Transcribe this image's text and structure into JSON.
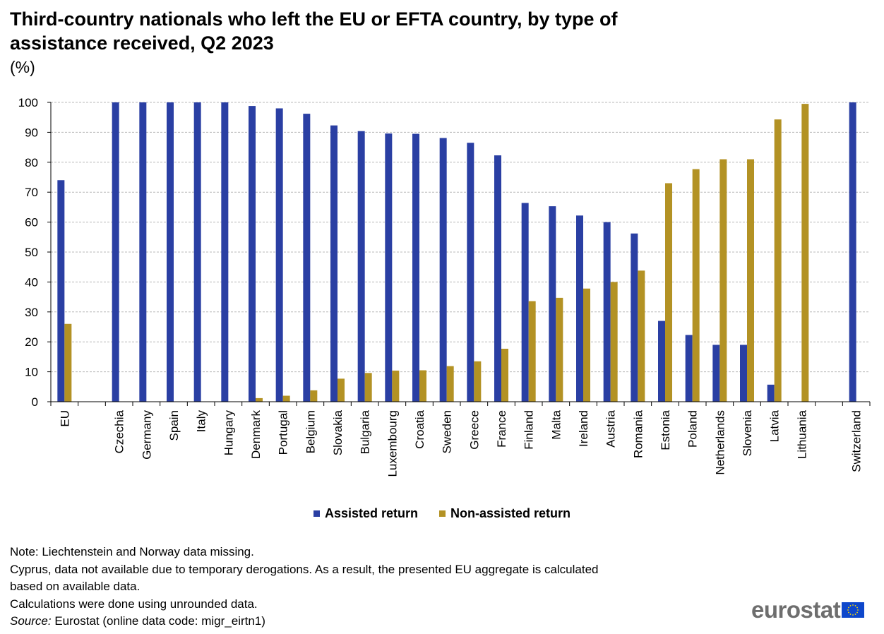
{
  "title": "Third-country nationals who left the EU or EFTA country, by type of assistance received, Q2 2023",
  "unit_label": "(%)",
  "colors": {
    "assisted": "#2a3fa3",
    "non_assisted": "#b39224",
    "grid": "#b8b8b8",
    "logo_text": "#6e6e6e",
    "flag": "#0e47cb",
    "flag_stars": "#ffdd00"
  },
  "legend": [
    {
      "label": "Assisted return",
      "color": "#2a3fa3"
    },
    {
      "label": "Non-assisted return",
      "color": "#b39224"
    }
  ],
  "notes": {
    "line1": "Note: Liechtenstein  and Norway data missing.",
    "line2": "Cyprus, data not available  due to temporary derogations. As a result, the presented EU aggregate is calculated",
    "line3": "based on available data.",
    "line4": "Calculations  were done using  unrounded  data.",
    "source_label": "Source:",
    "source_text": " Eurostat (online data code: migr_eirtn1)"
  },
  "logo": {
    "text": "eurostat",
    "icon": "eu-flag-icon"
  },
  "chart_data": {
    "type": "bar",
    "categories": [
      "EU",
      "",
      "Czechia",
      "Germany",
      "Spain",
      "Italy",
      "Hungary",
      "Denmark",
      "Portugal",
      "Belgium",
      "Slovakia",
      "Bulgaria",
      "Luxembourg",
      "Croatia",
      "Sweden",
      "Greece",
      "France",
      "Finland",
      "Malta",
      "Ireland",
      "Austria",
      "Romania",
      "Estonia",
      "Poland",
      "Netherlands",
      "Slovenia",
      "Latvia",
      "Lithuania",
      "",
      "Switzerland"
    ],
    "series": [
      {
        "name": "Assisted return",
        "values": [
          74,
          null,
          100,
          100,
          100,
          100,
          100,
          98.8,
          98,
          96.2,
          92.3,
          90.4,
          89.6,
          89.5,
          88.1,
          86.5,
          82.3,
          66.4,
          65.3,
          62.2,
          60,
          56.2,
          27,
          22.3,
          19,
          19,
          5.7,
          null,
          null,
          100
        ]
      },
      {
        "name": "Non-assisted return",
        "values": [
          26,
          null,
          null,
          null,
          null,
          null,
          null,
          1.2,
          2,
          3.8,
          7.7,
          9.6,
          10.4,
          10.5,
          11.9,
          13.5,
          17.7,
          33.6,
          34.7,
          37.8,
          40,
          43.8,
          73,
          77.7,
          81,
          81,
          94.3,
          99.5,
          null,
          null
        ]
      }
    ],
    "yticks": [
      0,
      10,
      20,
      30,
      40,
      50,
      60,
      70,
      80,
      90,
      100
    ],
    "ylim": [
      0,
      100
    ],
    "xlabel": "",
    "ylabel": "",
    "grid": true,
    "legend_position": "bottom"
  }
}
